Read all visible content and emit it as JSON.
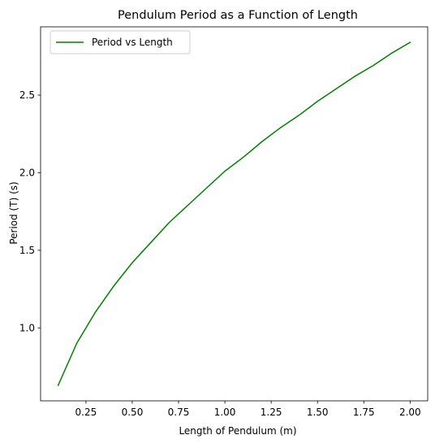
{
  "chart_data": {
    "type": "line",
    "title": "Pendulum Period as a Function of Length",
    "xlabel": "Length of Pendulum (m)",
    "ylabel": "Period (T) (s)",
    "xlim": [
      0.005,
      2.095
    ],
    "ylim": [
      0.53,
      2.94
    ],
    "x_ticks": [
      0.25,
      0.5,
      0.75,
      1.0,
      1.25,
      1.5,
      1.75,
      2.0
    ],
    "x_tick_labels": [
      "0.25",
      "0.50",
      "0.75",
      "1.00",
      "1.25",
      "1.50",
      "1.75",
      "2.00"
    ],
    "y_ticks": [
      1.0,
      1.5,
      2.0,
      2.5
    ],
    "y_tick_labels": [
      "1.0",
      "1.5",
      "2.0",
      "2.5"
    ],
    "grid": false,
    "legend_position": "upper-left",
    "series": [
      {
        "name": "Period vs Length",
        "color": "#008000",
        "x": [
          0.1,
          0.2,
          0.3,
          0.4,
          0.5,
          0.6,
          0.7,
          0.8,
          0.9,
          1.0,
          1.1,
          1.2,
          1.3,
          1.4,
          1.5,
          1.6,
          1.7,
          1.8,
          1.9,
          2.0
        ],
        "y": [
          0.63,
          0.9,
          1.1,
          1.27,
          1.42,
          1.55,
          1.68,
          1.79,
          1.9,
          2.01,
          2.1,
          2.2,
          2.29,
          2.37,
          2.46,
          2.54,
          2.62,
          2.69,
          2.77,
          2.84
        ]
      }
    ]
  }
}
